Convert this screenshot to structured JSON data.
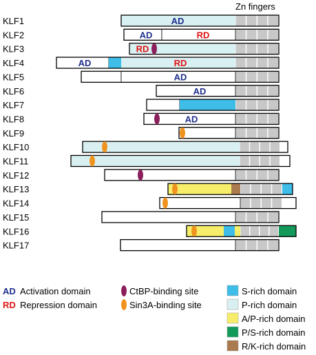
{
  "header_label": "Zn fingers",
  "colors": {
    "ad": "#1f2f8c",
    "rd": "#e01414",
    "ctbp": "#8b1f5c",
    "sin3a": "#f0931e",
    "s_rich": "#3dbde8",
    "p_rich": "#d9f0f2",
    "ap_rich": "#f6ee6a",
    "ps_rich": "#139a5a",
    "rk_rich": "#a97b4f",
    "zn": "#c8c8c8",
    "outline": "#000000"
  },
  "proteins": [
    {
      "name": "KLF1",
      "domains": [
        {
          "type": "p_rich",
          "label": "AD",
          "label_color": "ad"
        }
      ]
    },
    {
      "name": "KLF2",
      "domains": [
        {
          "type": "plain",
          "label": "AD",
          "label_color": "ad"
        },
        {
          "type": "plain",
          "label": "RD",
          "label_color": "rd"
        }
      ]
    },
    {
      "name": "KLF3",
      "domains": [
        {
          "type": "p_rich",
          "label": "RD",
          "label_color": "rd"
        }
      ],
      "sites": [
        "ctbp"
      ]
    },
    {
      "name": "KLF4",
      "domains": [
        {
          "type": "plain",
          "label": "AD",
          "label_color": "ad"
        },
        {
          "type": "s_rich"
        },
        {
          "type": "p_rich",
          "label": "RD",
          "label_color": "rd"
        }
      ]
    },
    {
      "name": "KLF5",
      "domains": [
        {
          "type": "plain"
        },
        {
          "type": "plain",
          "label": "AD",
          "label_color": "ad"
        }
      ]
    },
    {
      "name": "KLF6",
      "domains": [
        {
          "type": "plain",
          "label": "AD",
          "label_color": "ad"
        }
      ]
    },
    {
      "name": "KLF7",
      "domains": [
        {
          "type": "plain"
        },
        {
          "type": "s_rich"
        }
      ]
    },
    {
      "name": "KLF8",
      "domains": [
        {
          "type": "plain",
          "label": "AD",
          "label_color": "ad"
        }
      ],
      "sites": [
        "ctbp"
      ]
    },
    {
      "name": "KLF9",
      "domains": [
        {
          "type": "plain"
        }
      ],
      "sites": [
        "sin3a"
      ]
    },
    {
      "name": "KLF10",
      "domains": [
        {
          "type": "p_rich"
        }
      ],
      "sites": [
        "sin3a"
      ]
    },
    {
      "name": "KLF11",
      "domains": [
        {
          "type": "p_rich"
        }
      ],
      "sites": [
        "sin3a"
      ]
    },
    {
      "name": "KLF12",
      "domains": [
        {
          "type": "plain"
        }
      ],
      "sites": [
        "ctbp"
      ]
    },
    {
      "name": "KLF13",
      "domains": [
        {
          "type": "ap_rich"
        },
        {
          "type": "rk_rich"
        },
        {
          "type": "s_rich"
        }
      ],
      "sites": [
        "sin3a"
      ]
    },
    {
      "name": "KLF14",
      "domains": [
        {
          "type": "plain"
        }
      ],
      "sites": [
        "sin3a"
      ]
    },
    {
      "name": "KLF15",
      "domains": [
        {
          "type": "plain"
        }
      ]
    },
    {
      "name": "KLF16",
      "domains": [
        {
          "type": "ap_rich"
        },
        {
          "type": "s_rich"
        },
        {
          "type": "ap_rich"
        },
        {
          "type": "ps_rich"
        }
      ],
      "sites": [
        "sin3a"
      ]
    },
    {
      "name": "KLF17",
      "domains": [
        {
          "type": "plain"
        }
      ]
    }
  ],
  "legend": {
    "ad_abbr": "AD",
    "ad_text": "Activation domain",
    "rd_abbr": "RD",
    "rd_text": "Repression domain",
    "ctbp_text": "CtBP-binding site",
    "sin3a_text": "Sin3A-binding site",
    "s_rich_text": "S-rich domain",
    "p_rich_text": "P-rich domain",
    "ap_rich_text": "A/P-rich domain",
    "ps_rich_text": "P/S-rich domain",
    "rk_rich_text": "R/K-rich domain"
  }
}
